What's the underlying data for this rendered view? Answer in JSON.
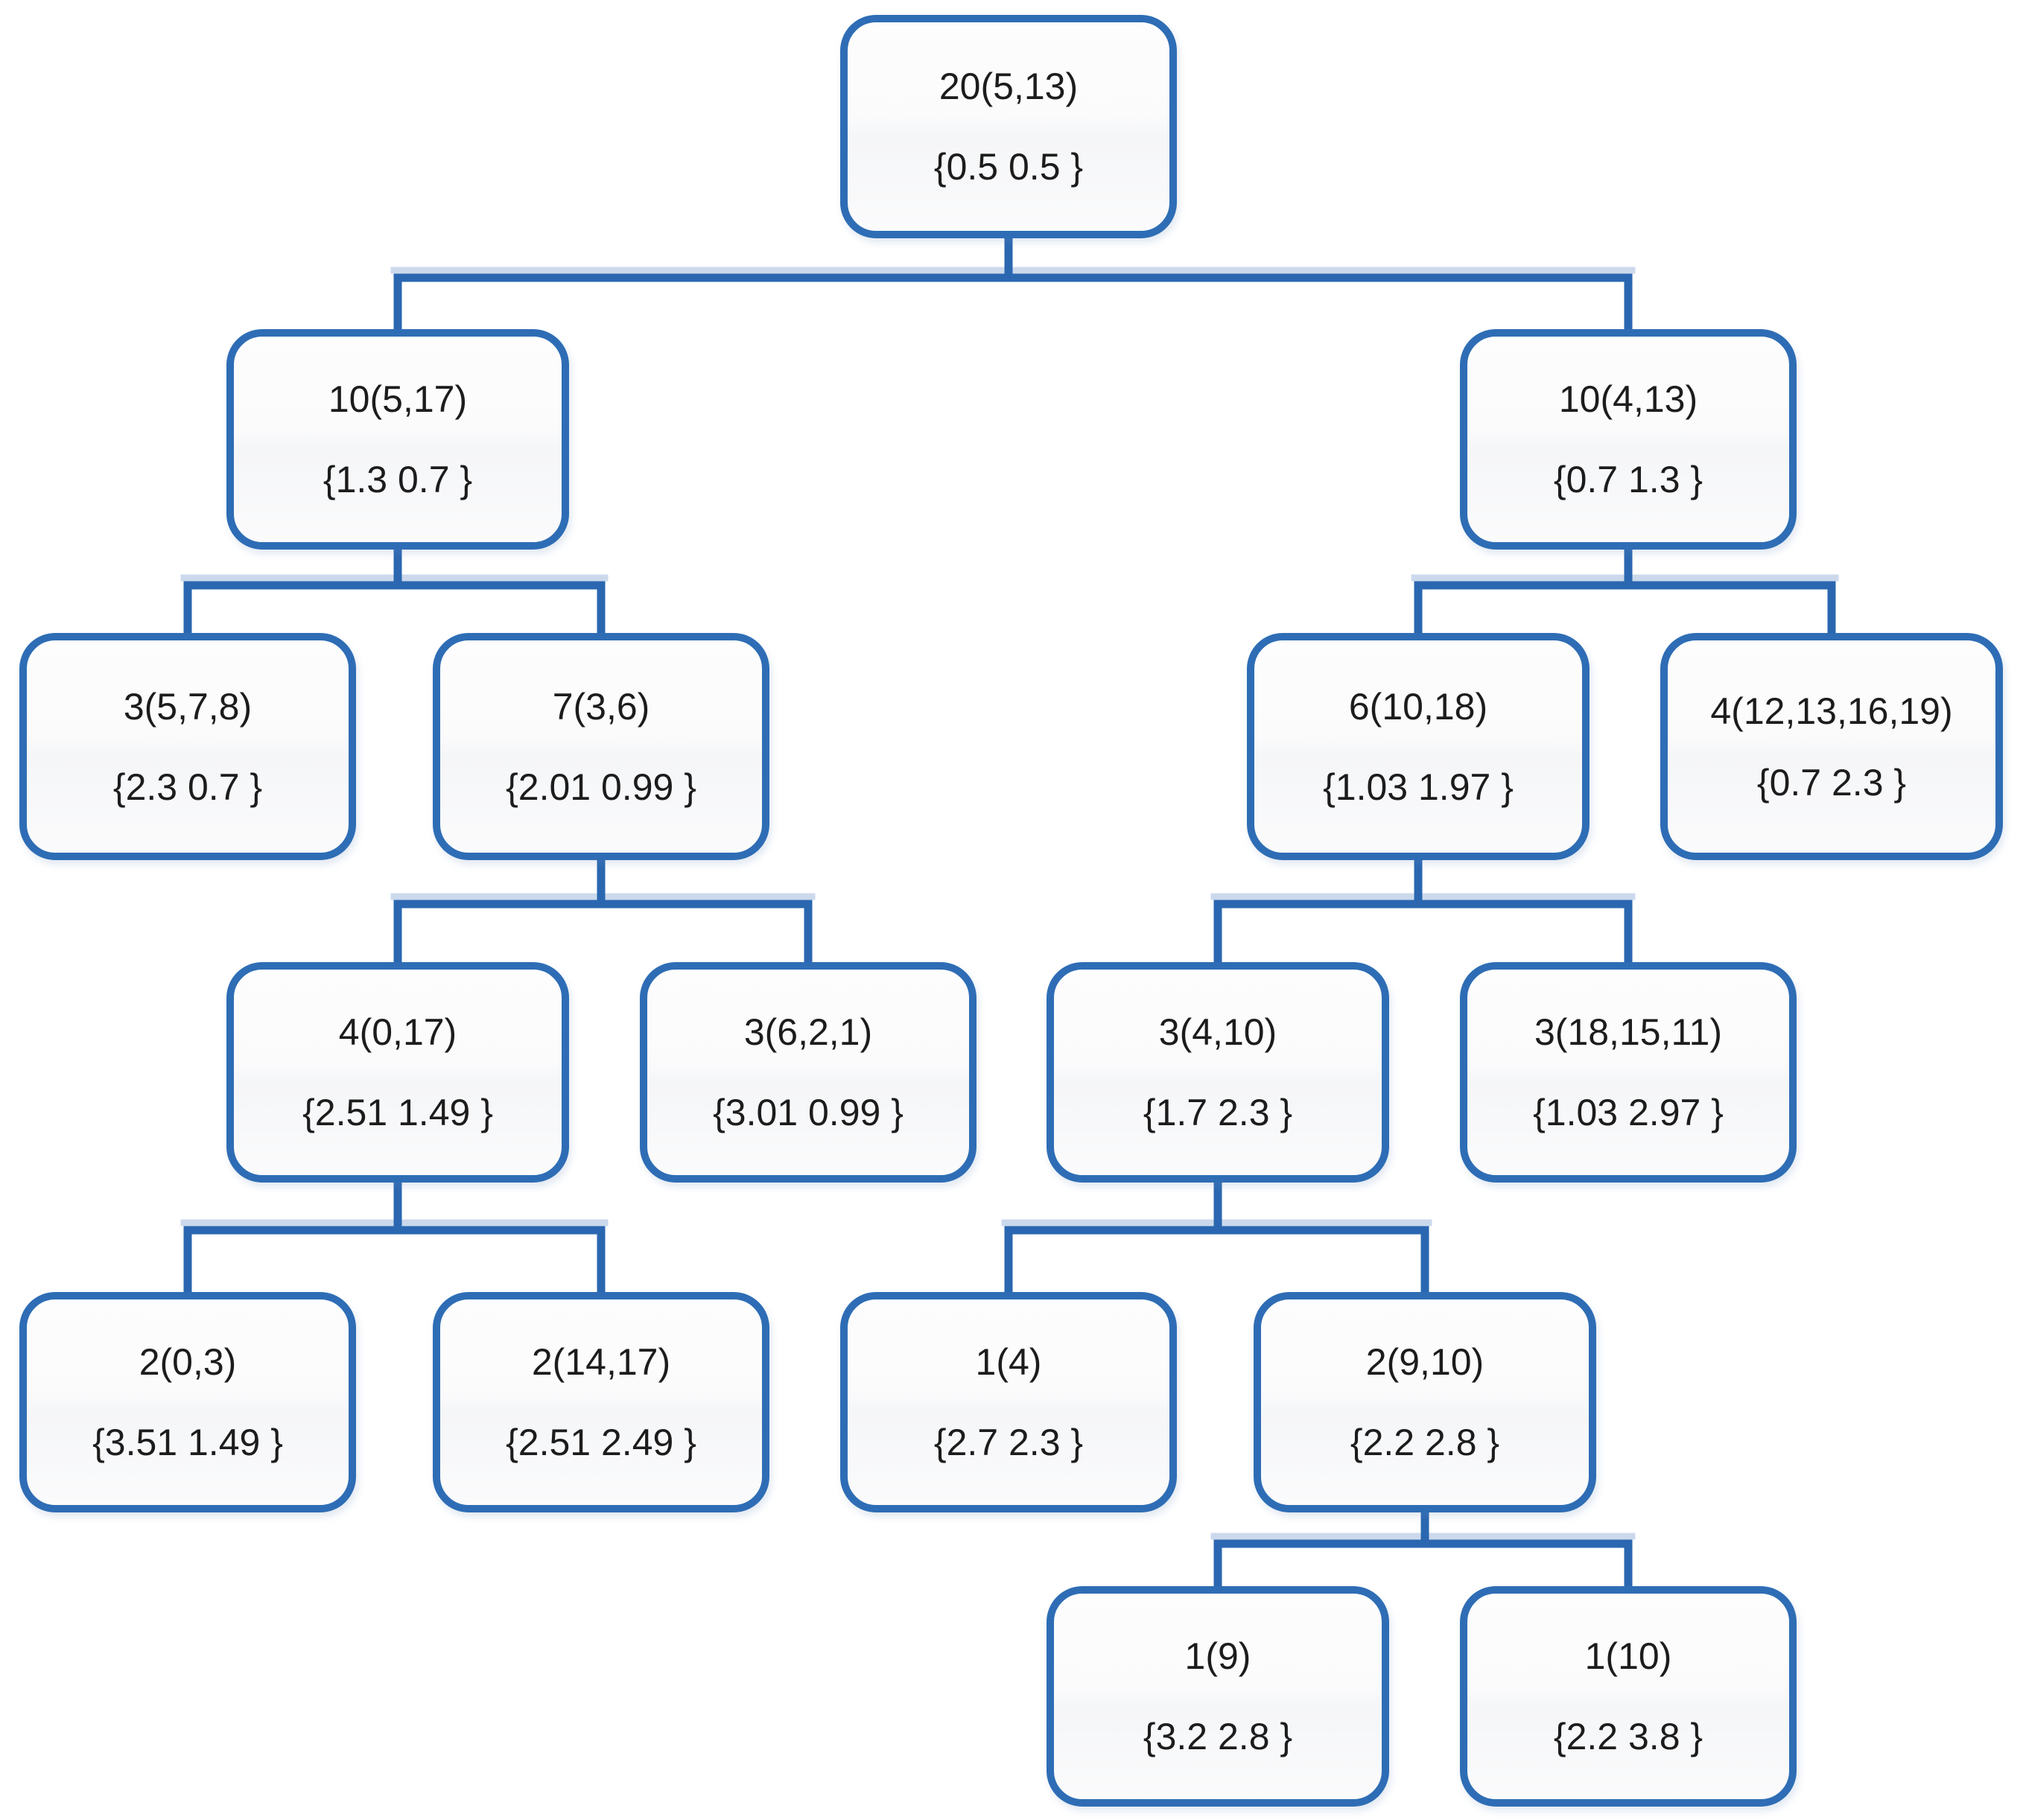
{
  "diagram": {
    "type": "tree",
    "title": "hierarchical clustering tree of nodes with weight vectors",
    "colors": {
      "node_border": "#2e6db5",
      "connector": "#2a67b0",
      "connector_halo": "#ccd9ec",
      "node_fill": "#fbfbfc",
      "text": "#1c1c1c"
    },
    "nodes": {
      "n0": {
        "label": "20(5,13)",
        "weights": "{0.5 0.5 }"
      },
      "n1": {
        "label": "10(5,17)",
        "weights": "{1.3 0.7 }"
      },
      "n2": {
        "label": "10(4,13)",
        "weights": "{0.7 1.3 }"
      },
      "n3": {
        "label": "3(5,7,8)",
        "weights": "{2.3 0.7 }"
      },
      "n4": {
        "label": "7(3,6)",
        "weights": "{2.01 0.99 }"
      },
      "n5": {
        "label": "6(10,18)",
        "weights": "{1.03 1.97 }"
      },
      "n6": {
        "label": "4(12,13,16,19)",
        "weights": "{0.7 2.3 }"
      },
      "n7": {
        "label": "4(0,17)",
        "weights": "{2.51 1.49 }"
      },
      "n8": {
        "label": "3(6,2,1)",
        "weights": "{3.01 0.99 }"
      },
      "n9": {
        "label": "3(4,10)",
        "weights": "{1.7 2.3 }"
      },
      "n10": {
        "label": "3(18,15,11)",
        "weights": "{1.03 2.97 }"
      },
      "n11": {
        "label": "2(0,3)",
        "weights": "{3.51 1.49 }"
      },
      "n12": {
        "label": "2(14,17)",
        "weights": "{2.51 2.49 }"
      },
      "n13": {
        "label": "1(4)",
        "weights": "{2.7 2.3 }"
      },
      "n14": {
        "label": "2(9,10)",
        "weights": "{2.2 2.8 }"
      },
      "n15": {
        "label": "1(9)",
        "weights": "{3.2 2.8 }"
      },
      "n16": {
        "label": "1(10)",
        "weights": "{2.2 3.8 }"
      }
    },
    "edges": [
      {
        "parent": "n0",
        "children": [
          "n1",
          "n2"
        ]
      },
      {
        "parent": "n1",
        "children": [
          "n3",
          "n4"
        ]
      },
      {
        "parent": "n2",
        "children": [
          "n5",
          "n6"
        ]
      },
      {
        "parent": "n4",
        "children": [
          "n7",
          "n8"
        ]
      },
      {
        "parent": "n5",
        "children": [
          "n9",
          "n10"
        ]
      },
      {
        "parent": "n7",
        "children": [
          "n11",
          "n12"
        ]
      },
      {
        "parent": "n9",
        "children": [
          "n13",
          "n14"
        ]
      },
      {
        "parent": "n14",
        "children": [
          "n15",
          "n16"
        ]
      }
    ]
  }
}
